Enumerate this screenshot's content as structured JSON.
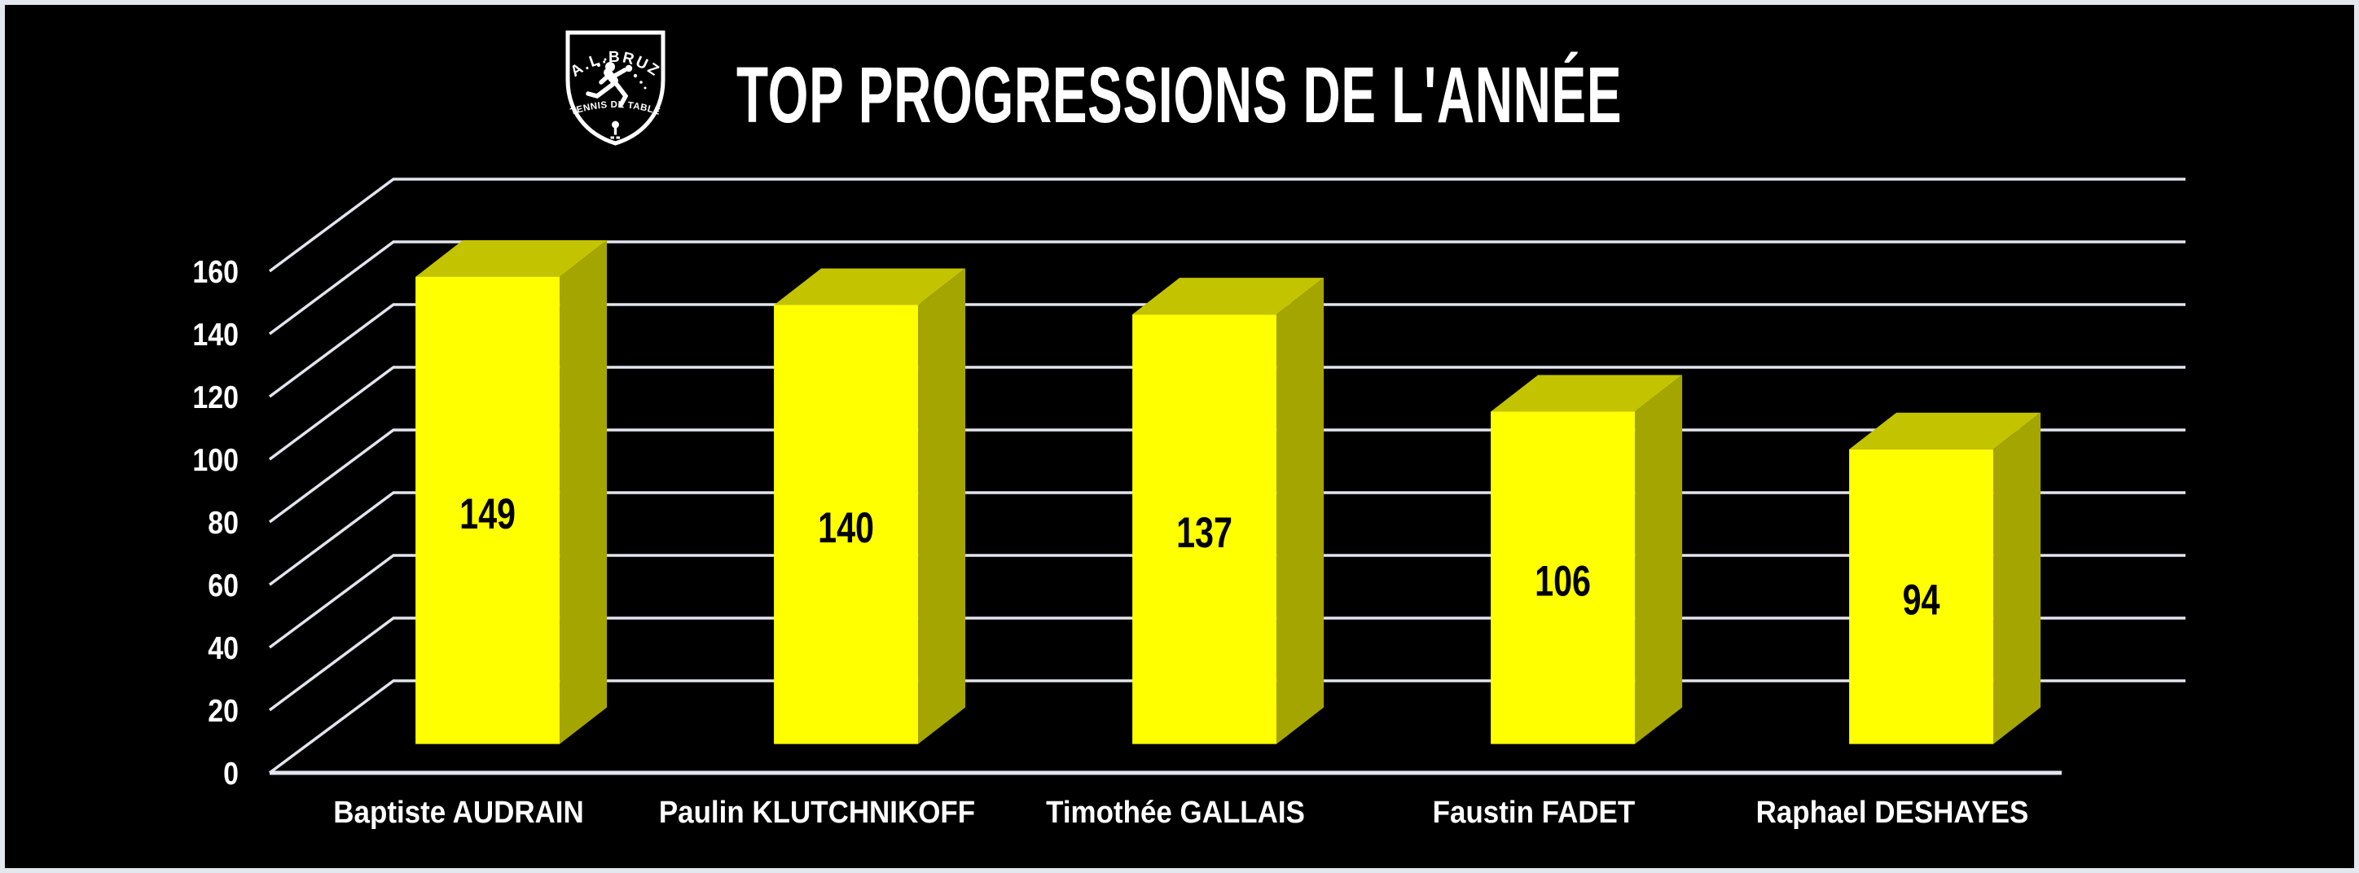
{
  "window": {
    "background": "#000000",
    "frame_color": "#E3E7EE"
  },
  "header": {
    "title": "TOP PROGRESSIONS DE L'ANNÉE",
    "logo": {
      "club_name": "A.L.BRUZ",
      "club_subtitle": "TENNIS DE TABLE"
    }
  },
  "chart_data": {
    "type": "bar",
    "projection": "3d",
    "title": "TOP PROGRESSIONS DE L'ANNÉE",
    "categories": [
      "Baptiste AUDRAIN",
      "Paulin KLUTCHNIKOFF",
      "Timothée GALLAIS",
      "Faustin FADET",
      "Raphael DESHAYES"
    ],
    "values": [
      149,
      140,
      137,
      106,
      94
    ],
    "show_data_labels": true,
    "xlabel": "",
    "ylabel": "",
    "ylim": [
      0,
      160
    ],
    "yticks": [
      0,
      20,
      40,
      60,
      80,
      100,
      120,
      140,
      160
    ],
    "grid": true,
    "legend": false,
    "colors": {
      "bar_front": "#FFFF00",
      "bar_top": "#C3C300",
      "bar_side": "#A5A500",
      "gridline": "#E2E4EE",
      "axis_label": "#FFFFFF",
      "value_label": "#000000",
      "background": "#000000"
    }
  }
}
